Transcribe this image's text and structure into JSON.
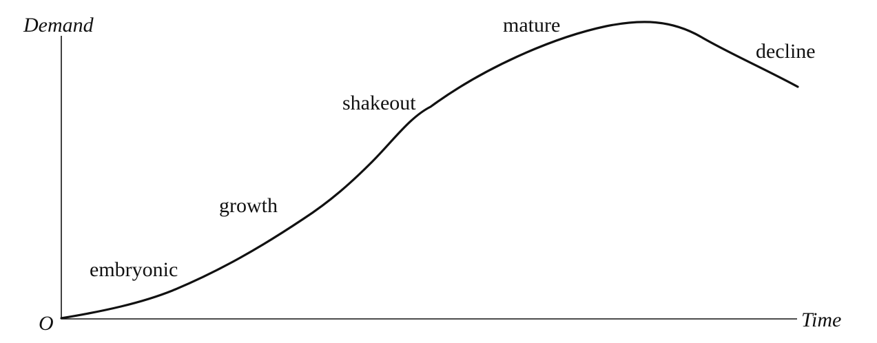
{
  "axes": {
    "y_label": "Demand",
    "x_label": "Time",
    "origin_label": "O"
  },
  "stages": [
    {
      "id": "embryonic",
      "label": "embryonic"
    },
    {
      "id": "growth",
      "label": "growth"
    },
    {
      "id": "shakeout",
      "label": "shakeout"
    },
    {
      "id": "mature",
      "label": "mature"
    },
    {
      "id": "decline",
      "label": "decline"
    }
  ],
  "colors": {
    "ink": "#111111",
    "background": "#ffffff"
  }
}
